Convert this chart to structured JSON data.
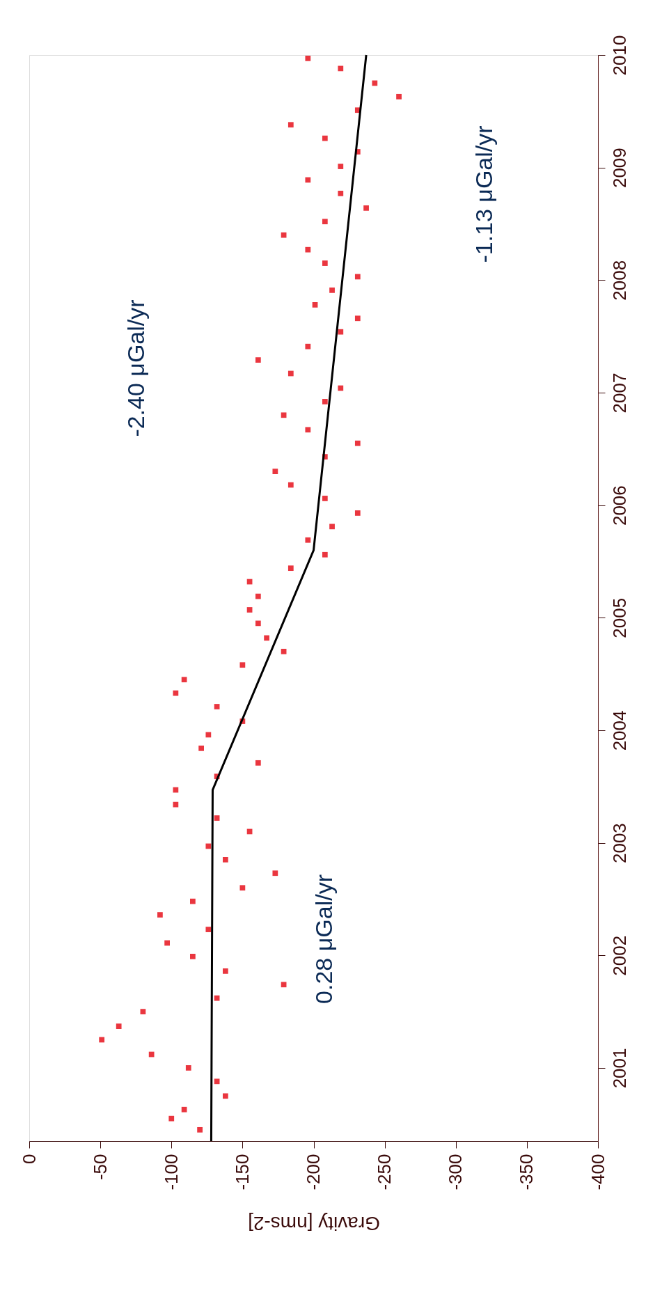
{
  "chart_data": {
    "type": "scatter",
    "xlabel": "Gravity [nms-2]",
    "xlim": [
      0,
      -400
    ],
    "xticks": [
      0,
      -50,
      -100,
      -150,
      -200,
      -250,
      -300,
      -350,
      -400
    ],
    "ylim": [
      2000.35,
      2010.0
    ],
    "yticks": [
      2001,
      2002,
      2003,
      2004,
      2005,
      2006,
      2007,
      2008,
      2009,
      2010
    ],
    "marker": "square",
    "grid": false,
    "series": [
      {
        "color": "#e8202a",
        "x": [
          -120,
          -100,
          -109,
          -138,
          -132,
          -112,
          -86,
          -51,
          -63,
          -80,
          -132,
          -179,
          -138,
          -115,
          -97,
          -126,
          -92,
          -115,
          -150,
          -173,
          -138,
          -126,
          -155,
          -132,
          -103,
          -103,
          -132,
          -161,
          -121,
          -126,
          -150,
          -132,
          -103,
          -109,
          -150,
          -179,
          -167,
          -161,
          -155,
          -161,
          -155,
          -184,
          -208,
          -196,
          -213,
          -231,
          -208,
          -184,
          -173,
          -208,
          -231,
          -196,
          -179,
          -208,
          -219,
          -184,
          -161,
          -196,
          -219,
          -231,
          -201,
          -213,
          -231,
          -208,
          -196,
          -179,
          -208,
          -237,
          -219,
          -196,
          -219,
          -231,
          -208,
          -184,
          -231,
          -260,
          -243,
          -219,
          -196
        ],
        "values": [
          2000.45,
          2000.55,
          2000.63,
          2000.75,
          2000.88,
          2001.0,
          2001.12,
          2001.25,
          2001.37,
          2001.5,
          2001.62,
          2001.74,
          2001.86,
          2001.99,
          2002.11,
          2002.23,
          2002.36,
          2002.48,
          2002.6,
          2002.73,
          2002.85,
          2002.97,
          2003.1,
          2003.22,
          2003.34,
          2003.47,
          2003.59,
          2003.71,
          2003.84,
          2003.96,
          2004.08,
          2004.21,
          2004.33,
          2004.45,
          2004.58,
          2004.7,
          2004.82,
          2004.95,
          2005.07,
          2005.19,
          2005.32,
          2005.44,
          2005.56,
          2005.69,
          2005.81,
          2005.93,
          2006.06,
          2006.18,
          2006.3,
          2006.43,
          2006.55,
          2006.67,
          2006.8,
          2006.92,
          2007.04,
          2007.17,
          2007.29,
          2007.41,
          2007.54,
          2007.66,
          2007.78,
          2007.91,
          2008.03,
          2008.15,
          2008.27,
          2008.4,
          2008.52,
          2008.64,
          2008.77,
          2008.89,
          2009.01,
          2009.14,
          2009.26,
          2009.38,
          2009.51,
          2009.63,
          2009.75,
          2009.88,
          2009.97
        ]
      },
      {
        "type": "line",
        "color": "#000000",
        "marker": "none",
        "line_style": "solid",
        "x": [
          -128,
          -129,
          -200,
          -237
        ],
        "values": [
          2000.35,
          2003.47,
          2005.6,
          2010.0
        ]
      }
    ],
    "annotations": [
      "-2.40 μGal/yr",
      "0.28 μGal/yr",
      "-1.13 μGal/yr"
    ]
  }
}
